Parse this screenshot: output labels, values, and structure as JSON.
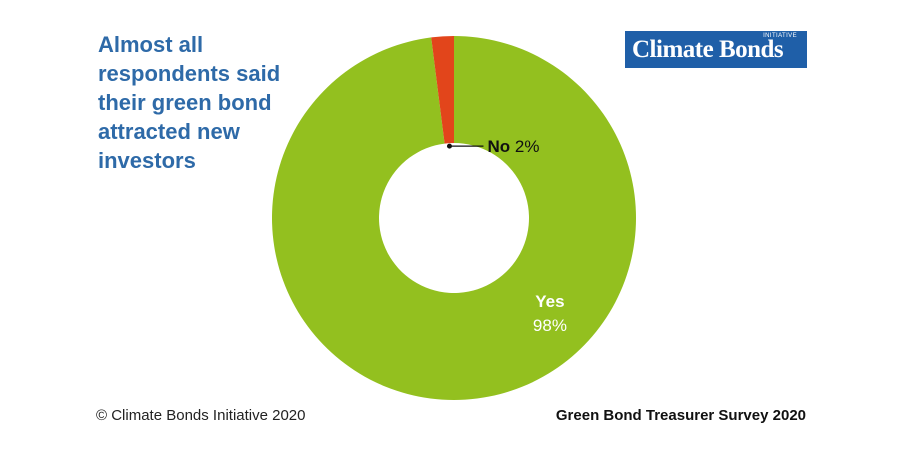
{
  "headline": {
    "lines": [
      "Almost all",
      "respondents said",
      "their green bond",
      "attracted new",
      "investors"
    ]
  },
  "logo": {
    "text": "Climate Bonds",
    "tag": "INITIATIVE"
  },
  "footer": {
    "copyright": "© Climate Bonds Initiative 2020",
    "source": "Green Bond Treasurer Survey 2020"
  },
  "chart_data": {
    "type": "pie",
    "donut": true,
    "categories": [
      "Yes",
      "No"
    ],
    "values": [
      98,
      2
    ],
    "value_labels": [
      "98%",
      "2%"
    ],
    "colors": [
      "#93c01f",
      "#e2451b"
    ],
    "label_color": "#ffffff"
  }
}
